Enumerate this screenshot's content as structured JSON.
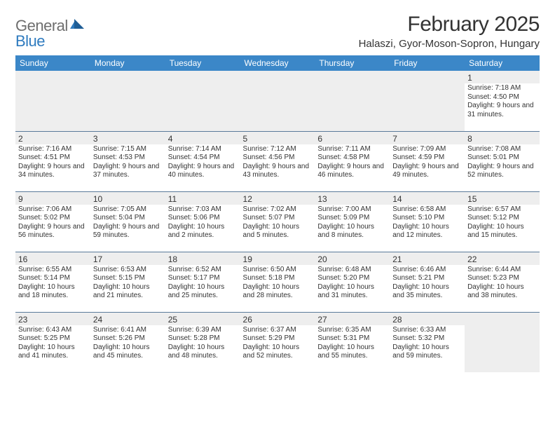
{
  "brand": {
    "part1": "General",
    "part2": "Blue"
  },
  "title": "February 2025",
  "location": "Halaszi, Gyor-Moson-Sopron, Hungary",
  "colors": {
    "header_bg": "#3b87c8",
    "header_text": "#ffffff",
    "shade_bg": "#eeeeee",
    "text": "#333333",
    "rule": "#5a7a9a",
    "logo_gray": "#6e6e6e",
    "logo_blue": "#2f7bbf"
  },
  "dow": [
    "Sunday",
    "Monday",
    "Tuesday",
    "Wednesday",
    "Thursday",
    "Friday",
    "Saturday"
  ],
  "weeks": [
    [
      null,
      null,
      null,
      null,
      null,
      null,
      {
        "n": "1",
        "sr": "7:18 AM",
        "ss": "4:50 PM",
        "dl": "9 hours and 31 minutes."
      }
    ],
    [
      {
        "n": "2",
        "sr": "7:16 AM",
        "ss": "4:51 PM",
        "dl": "9 hours and 34 minutes."
      },
      {
        "n": "3",
        "sr": "7:15 AM",
        "ss": "4:53 PM",
        "dl": "9 hours and 37 minutes."
      },
      {
        "n": "4",
        "sr": "7:14 AM",
        "ss": "4:54 PM",
        "dl": "9 hours and 40 minutes."
      },
      {
        "n": "5",
        "sr": "7:12 AM",
        "ss": "4:56 PM",
        "dl": "9 hours and 43 minutes."
      },
      {
        "n": "6",
        "sr": "7:11 AM",
        "ss": "4:58 PM",
        "dl": "9 hours and 46 minutes."
      },
      {
        "n": "7",
        "sr": "7:09 AM",
        "ss": "4:59 PM",
        "dl": "9 hours and 49 minutes."
      },
      {
        "n": "8",
        "sr": "7:08 AM",
        "ss": "5:01 PM",
        "dl": "9 hours and 52 minutes."
      }
    ],
    [
      {
        "n": "9",
        "sr": "7:06 AM",
        "ss": "5:02 PM",
        "dl": "9 hours and 56 minutes."
      },
      {
        "n": "10",
        "sr": "7:05 AM",
        "ss": "5:04 PM",
        "dl": "9 hours and 59 minutes."
      },
      {
        "n": "11",
        "sr": "7:03 AM",
        "ss": "5:06 PM",
        "dl": "10 hours and 2 minutes."
      },
      {
        "n": "12",
        "sr": "7:02 AM",
        "ss": "5:07 PM",
        "dl": "10 hours and 5 minutes."
      },
      {
        "n": "13",
        "sr": "7:00 AM",
        "ss": "5:09 PM",
        "dl": "10 hours and 8 minutes."
      },
      {
        "n": "14",
        "sr": "6:58 AM",
        "ss": "5:10 PM",
        "dl": "10 hours and 12 minutes."
      },
      {
        "n": "15",
        "sr": "6:57 AM",
        "ss": "5:12 PM",
        "dl": "10 hours and 15 minutes."
      }
    ],
    [
      {
        "n": "16",
        "sr": "6:55 AM",
        "ss": "5:14 PM",
        "dl": "10 hours and 18 minutes."
      },
      {
        "n": "17",
        "sr": "6:53 AM",
        "ss": "5:15 PM",
        "dl": "10 hours and 21 minutes."
      },
      {
        "n": "18",
        "sr": "6:52 AM",
        "ss": "5:17 PM",
        "dl": "10 hours and 25 minutes."
      },
      {
        "n": "19",
        "sr": "6:50 AM",
        "ss": "5:18 PM",
        "dl": "10 hours and 28 minutes."
      },
      {
        "n": "20",
        "sr": "6:48 AM",
        "ss": "5:20 PM",
        "dl": "10 hours and 31 minutes."
      },
      {
        "n": "21",
        "sr": "6:46 AM",
        "ss": "5:21 PM",
        "dl": "10 hours and 35 minutes."
      },
      {
        "n": "22",
        "sr": "6:44 AM",
        "ss": "5:23 PM",
        "dl": "10 hours and 38 minutes."
      }
    ],
    [
      {
        "n": "23",
        "sr": "6:43 AM",
        "ss": "5:25 PM",
        "dl": "10 hours and 41 minutes."
      },
      {
        "n": "24",
        "sr": "6:41 AM",
        "ss": "5:26 PM",
        "dl": "10 hours and 45 minutes."
      },
      {
        "n": "25",
        "sr": "6:39 AM",
        "ss": "5:28 PM",
        "dl": "10 hours and 48 minutes."
      },
      {
        "n": "26",
        "sr": "6:37 AM",
        "ss": "5:29 PM",
        "dl": "10 hours and 52 minutes."
      },
      {
        "n": "27",
        "sr": "6:35 AM",
        "ss": "5:31 PM",
        "dl": "10 hours and 55 minutes."
      },
      {
        "n": "28",
        "sr": "6:33 AM",
        "ss": "5:32 PM",
        "dl": "10 hours and 59 minutes."
      },
      null
    ]
  ],
  "labels": {
    "sunrise": "Sunrise:",
    "sunset": "Sunset:",
    "daylight": "Daylight:"
  }
}
